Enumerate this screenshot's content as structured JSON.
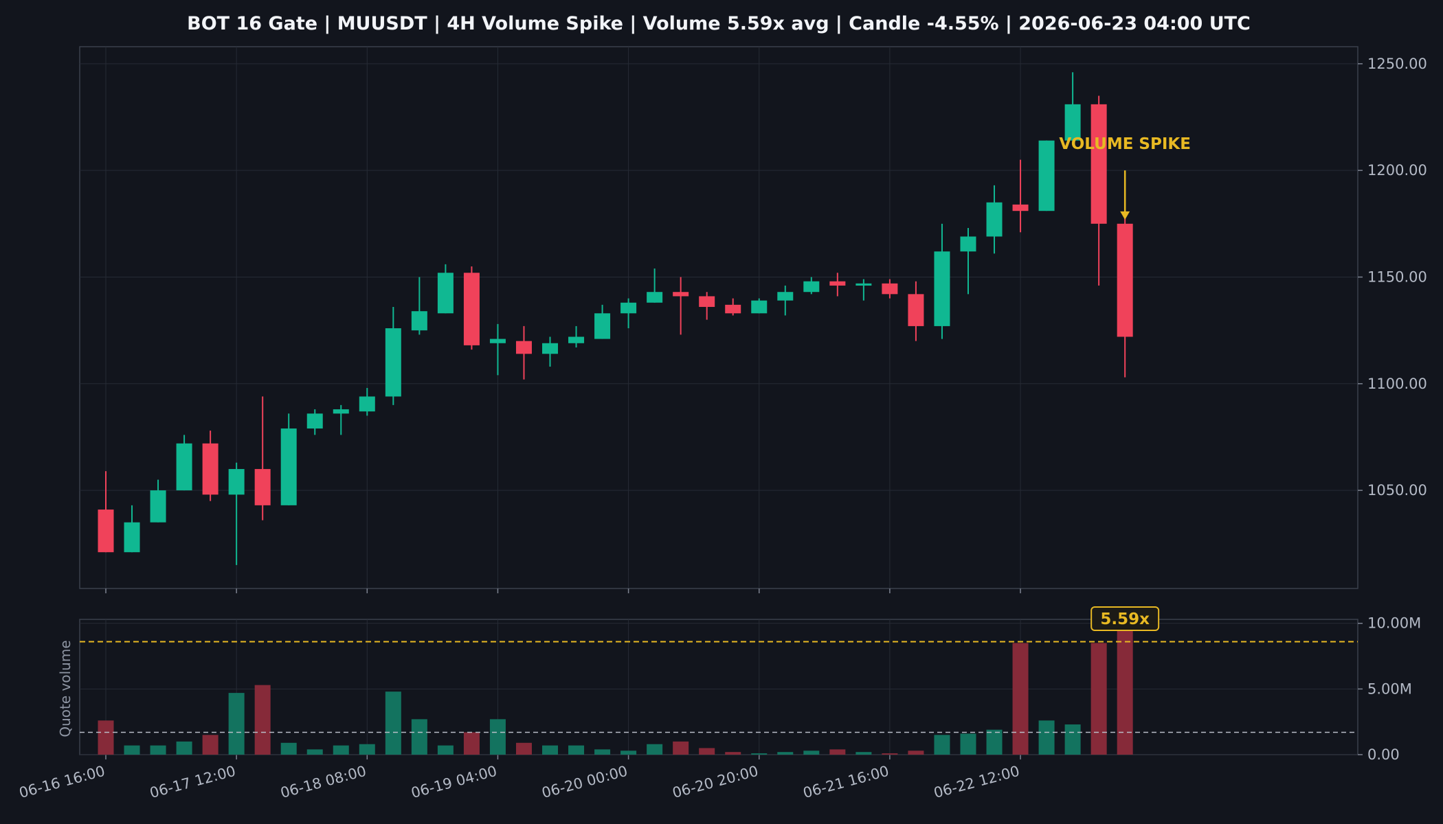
{
  "title": "BOT 16 Gate | MUUSDT | 4H Volume Spike | Volume 5.59x avg | Candle -4.55% | 2026-06-23 04:00 UTC",
  "colors": {
    "background": "#12151d",
    "up": "#10b892",
    "down": "#f0425a",
    "up_volume": "#13735f",
    "down_volume": "#862a39",
    "accent": "#e8b923",
    "grid": "#262b35",
    "frame": "#3a404c"
  },
  "chart_data": [
    {
      "type": "candlestick",
      "x_ticks": [
        "06-16 16:00",
        "06-17 12:00",
        "06-18 08:00",
        "06-19 04:00",
        "06-20 00:00",
        "06-20 20:00",
        "06-21 16:00",
        "06-22 12:00"
      ],
      "y_ticks": [
        "1050.00",
        "1100.00",
        "1150.00",
        "1200.00",
        "1250.00"
      ],
      "ylim": [
        1004,
        1258
      ],
      "grid": true,
      "y_axis_side": "right",
      "candles": [
        {
          "t": "06-16 16:00",
          "o": 1041,
          "h": 1059,
          "l": 1021,
          "c": 1021
        },
        {
          "t": "06-16 20:00",
          "o": 1021,
          "h": 1043,
          "l": 1021,
          "c": 1035
        },
        {
          "t": "06-17 00:00",
          "o": 1035,
          "h": 1055,
          "l": 1035,
          "c": 1050
        },
        {
          "t": "06-17 04:00",
          "o": 1050,
          "h": 1076,
          "l": 1050,
          "c": 1072
        },
        {
          "t": "06-17 08:00",
          "o": 1072,
          "h": 1078,
          "l": 1045,
          "c": 1048
        },
        {
          "t": "06-17 12:00",
          "o": 1048,
          "h": 1063,
          "l": 1015,
          "c": 1060
        },
        {
          "t": "06-17 16:00",
          "o": 1060,
          "h": 1094,
          "l": 1036,
          "c": 1043
        },
        {
          "t": "06-17 20:00",
          "o": 1043,
          "h": 1086,
          "l": 1043,
          "c": 1079
        },
        {
          "t": "06-18 00:00",
          "o": 1079,
          "h": 1088,
          "l": 1076,
          "c": 1086
        },
        {
          "t": "06-18 04:00",
          "o": 1086,
          "h": 1090,
          "l": 1076,
          "c": 1088
        },
        {
          "t": "06-18 08:00",
          "o": 1087,
          "h": 1098,
          "l": 1085,
          "c": 1094
        },
        {
          "t": "06-18 12:00",
          "o": 1094,
          "h": 1136,
          "l": 1090,
          "c": 1126
        },
        {
          "t": "06-18 16:00",
          "o": 1125,
          "h": 1150,
          "l": 1123,
          "c": 1134
        },
        {
          "t": "06-18 20:00",
          "o": 1133,
          "h": 1156,
          "l": 1133,
          "c": 1152
        },
        {
          "t": "06-19 00:00",
          "o": 1152,
          "h": 1155,
          "l": 1116,
          "c": 1118
        },
        {
          "t": "06-19 04:00",
          "o": 1119,
          "h": 1128,
          "l": 1104,
          "c": 1121
        },
        {
          "t": "06-19 08:00",
          "o": 1120,
          "h": 1127,
          "l": 1102,
          "c": 1114
        },
        {
          "t": "06-19 12:00",
          "o": 1114,
          "h": 1122,
          "l": 1108,
          "c": 1119
        },
        {
          "t": "06-19 16:00",
          "o": 1119,
          "h": 1127,
          "l": 1117,
          "c": 1122
        },
        {
          "t": "06-19 20:00",
          "o": 1121,
          "h": 1137,
          "l": 1121,
          "c": 1133
        },
        {
          "t": "06-20 00:00",
          "o": 1133,
          "h": 1140,
          "l": 1126,
          "c": 1138
        },
        {
          "t": "06-20 04:00",
          "o": 1138,
          "h": 1154,
          "l": 1138,
          "c": 1143
        },
        {
          "t": "06-20 08:00",
          "o": 1143,
          "h": 1150,
          "l": 1123,
          "c": 1141
        },
        {
          "t": "06-20 12:00",
          "o": 1141,
          "h": 1143,
          "l": 1130,
          "c": 1136
        },
        {
          "t": "06-20 16:00",
          "o": 1137,
          "h": 1140,
          "l": 1132,
          "c": 1133
        },
        {
          "t": "06-20 20:00",
          "o": 1133,
          "h": 1140,
          "l": 1133,
          "c": 1139
        },
        {
          "t": "06-21 00:00",
          "o": 1139,
          "h": 1146,
          "l": 1132,
          "c": 1143
        },
        {
          "t": "06-21 04:00",
          "o": 1143,
          "h": 1150,
          "l": 1142,
          "c": 1148
        },
        {
          "t": "06-21 08:00",
          "o": 1148,
          "h": 1152,
          "l": 1141,
          "c": 1146
        },
        {
          "t": "06-21 12:00",
          "o": 1146,
          "h": 1149,
          "l": 1139,
          "c": 1147
        },
        {
          "t": "06-21 16:00",
          "o": 1147,
          "h": 1149,
          "l": 1140,
          "c": 1142
        },
        {
          "t": "06-21 20:00",
          "o": 1142,
          "h": 1148,
          "l": 1120,
          "c": 1127
        },
        {
          "t": "06-22 00:00",
          "o": 1127,
          "h": 1175,
          "l": 1121,
          "c": 1162
        },
        {
          "t": "06-22 04:00",
          "o": 1162,
          "h": 1173,
          "l": 1142,
          "c": 1169
        },
        {
          "t": "06-22 08:00",
          "o": 1169,
          "h": 1193,
          "l": 1161,
          "c": 1185
        },
        {
          "t": "06-22 12:00",
          "o": 1184,
          "h": 1205,
          "l": 1171,
          "c": 1181
        },
        {
          "t": "06-22 16:00",
          "o": 1181,
          "h": 1214,
          "l": 1181,
          "c": 1214
        },
        {
          "t": "06-22 20:00",
          "o": 1214,
          "h": 1246,
          "l": 1214,
          "c": 1231
        },
        {
          "t": "06-23 00:00",
          "o": 1231,
          "h": 1235,
          "l": 1146,
          "c": 1175
        },
        {
          "t": "06-23 04:00",
          "o": 1175,
          "h": 1181,
          "l": 1103,
          "c": 1122
        }
      ],
      "annotations": [
        {
          "text": "VOLUME SPIKE",
          "at": "06-23 04:00"
        }
      ]
    },
    {
      "type": "bar",
      "ylabel": "Quote volume",
      "y_ticks": [
        "0.00",
        "5.00M",
        "10.00M"
      ],
      "ylim": [
        0,
        10.3
      ],
      "y_axis_side": "right",
      "grid": true,
      "average_line": 1.7,
      "threshold_line": 8.6,
      "volumes_millions": [
        2.6,
        0.7,
        0.7,
        1.0,
        1.5,
        4.7,
        5.3,
        0.9,
        0.4,
        0.7,
        0.8,
        4.8,
        2.7,
        0.7,
        1.7,
        2.7,
        0.9,
        0.7,
        0.7,
        0.4,
        0.3,
        0.8,
        1.0,
        0.5,
        0.2,
        0.1,
        0.2,
        0.3,
        0.4,
        0.2,
        0.1,
        0.3,
        1.5,
        1.6,
        1.9,
        8.5,
        2.6,
        2.3,
        8.5,
        9.6
      ],
      "spike_label": "5.59x"
    }
  ]
}
